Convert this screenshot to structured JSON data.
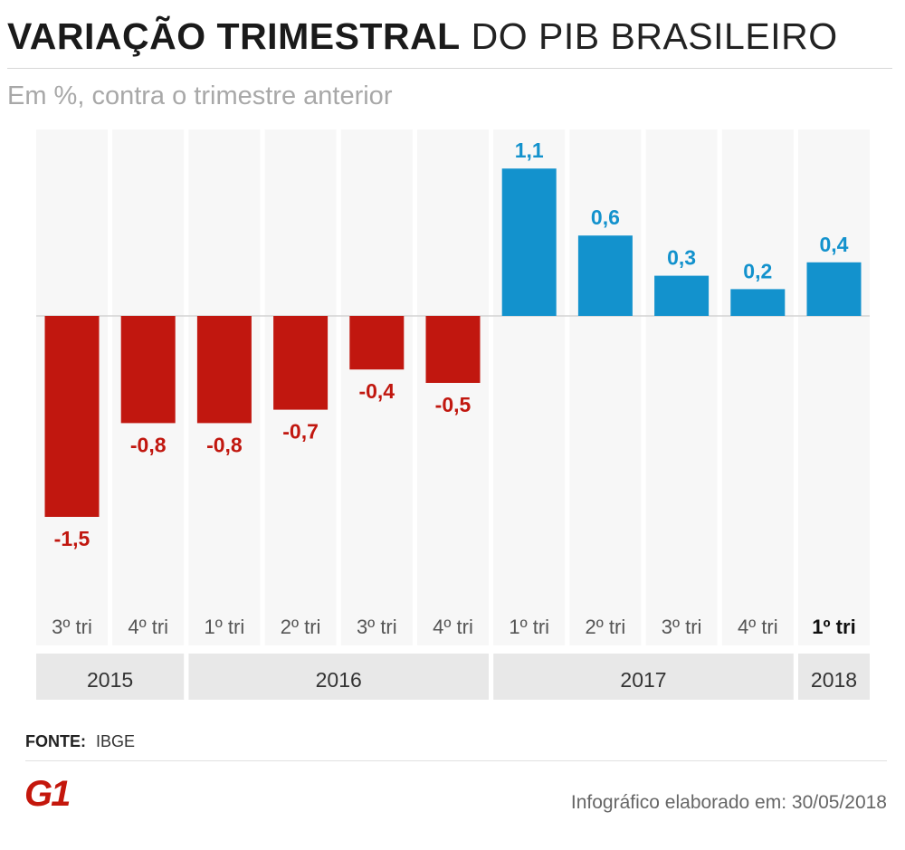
{
  "header": {
    "title_bold": "VARIAÇÃO TRIMESTRAL",
    "title_light": "DO PIB BRASILEIRO",
    "subtitle": "Em %, contra o trimestre anterior"
  },
  "footer": {
    "source_label": "FONTE:",
    "source_value": "IBGE",
    "logo_text": "G1",
    "credit": "Infográfico elaborado em: 30/05/2018"
  },
  "colors": {
    "negative": "#c1170f",
    "positive": "#1392cd",
    "column_bg": "#f7f7f7",
    "year_bg": "#e8e8e8",
    "logo": "#c4170c"
  },
  "chart_data": {
    "type": "bar",
    "title": "VARIAÇÃO TRIMESTRAL DO PIB BRASILEIRO",
    "subtitle": "Em %, contra o trimestre anterior",
    "xlabel": "",
    "ylabel": "%",
    "ylim": [
      -2,
      1.4
    ],
    "grid": false,
    "categories": [
      "3º tri",
      "4º tri",
      "1º tri",
      "2º tri",
      "3º tri",
      "4º tri",
      "1º tri",
      "2º tri",
      "3º tri",
      "4º tri",
      "1º tri"
    ],
    "value_labels": [
      "-1,5",
      "-0,8",
      "-0,8",
      "-0,7",
      "-0,4",
      "-0,5",
      "1,1",
      "0,6",
      "0,3",
      "0,2",
      "0,4"
    ],
    "values": [
      -1.5,
      -0.8,
      -0.8,
      -0.7,
      -0.4,
      -0.5,
      1.1,
      0.6,
      0.3,
      0.2,
      0.4
    ],
    "highlight_index": 10,
    "year_groups": [
      {
        "label": "2015",
        "start": 0,
        "end": 1
      },
      {
        "label": "2016",
        "start": 2,
        "end": 5
      },
      {
        "label": "2017",
        "start": 6,
        "end": 9
      },
      {
        "label": "2018",
        "start": 10,
        "end": 10
      }
    ]
  }
}
